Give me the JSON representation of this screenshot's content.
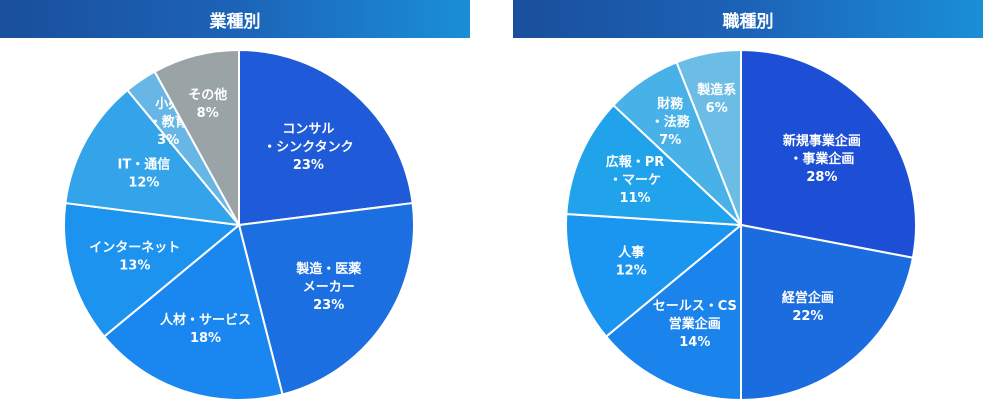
{
  "chart_data": [
    {
      "type": "pie",
      "title": "業種別",
      "colors": [
        "#1f5bd8",
        "#1c6fe0",
        "#1a87f0",
        "#1c93ee",
        "#33a3ea",
        "#67b6e6",
        "#9aa4a6"
      ],
      "slices": [
        {
          "label": [
            "コンサル",
            "・シンクタンク"
          ],
          "pct": "23%",
          "value": 23
        },
        {
          "label": [
            "製造・医薬",
            "メーカー"
          ],
          "pct": "23%",
          "value": 23
        },
        {
          "label": [
            "人材・サービス"
          ],
          "pct": "18%",
          "value": 18
        },
        {
          "label": [
            "インターネット"
          ],
          "pct": "13%",
          "value": 13
        },
        {
          "label": [
            "IT・通信"
          ],
          "pct": "12%",
          "value": 12
        },
        {
          "label": [
            "小売",
            "・教育"
          ],
          "pct": "3%",
          "value": 3
        },
        {
          "label": [
            "その他"
          ],
          "pct": "8%",
          "value": 8
        }
      ]
    },
    {
      "type": "pie",
      "title": "職種別",
      "colors": [
        "#1d4fd6",
        "#1b6ddf",
        "#1a83ec",
        "#1a96f0",
        "#21a3ec",
        "#48b2e8",
        "#6cbde6"
      ],
      "slices": [
        {
          "label": [
            "新規事業企画",
            "・事業企画"
          ],
          "pct": "28%",
          "value": 28
        },
        {
          "label": [
            "経営企画"
          ],
          "pct": "22%",
          "value": 22
        },
        {
          "label": [
            "セールス・CS",
            "営業企画"
          ],
          "pct": "14%",
          "value": 14
        },
        {
          "label": [
            "人事"
          ],
          "pct": "12%",
          "value": 12
        },
        {
          "label": [
            "広報・PR",
            "・マーケ"
          ],
          "pct": "11%",
          "value": 11
        },
        {
          "label": [
            "財務",
            "・法務"
          ],
          "pct": "7%",
          "value": 7
        },
        {
          "label": [
            "製造系"
          ],
          "pct": "6%",
          "value": 6
        }
      ]
    }
  ]
}
